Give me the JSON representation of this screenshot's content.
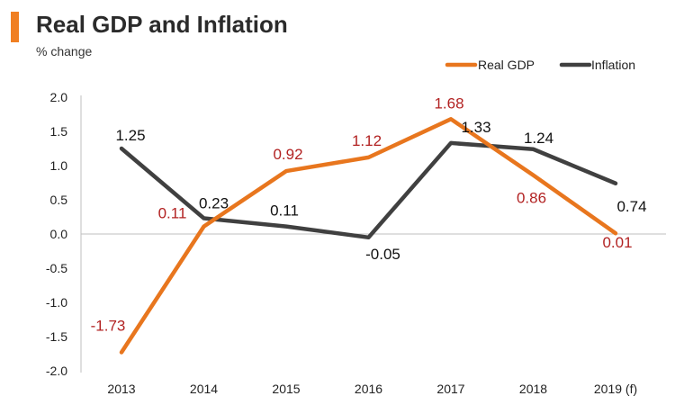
{
  "header": {
    "title": "Real GDP and Inflation",
    "subtitle": "% change"
  },
  "colors": {
    "accent": "#f07f22",
    "gdp": "#e8761e",
    "inflation": "#404040",
    "gdp_label": "#b22222",
    "inflation_label": "#111111",
    "axis": "#bfbfbf"
  },
  "chart_data": {
    "type": "line",
    "title": "Real GDP and Inflation",
    "ylabel": "% change",
    "xlabel": "",
    "categories": [
      "2013",
      "2014",
      "2015",
      "2016",
      "2017",
      "2018",
      "2019 (f)"
    ],
    "ylim": [
      -2.0,
      2.0
    ],
    "yticks": [
      "2.0",
      "1.5",
      "1.0",
      "0.5",
      "0.0",
      "-0.5",
      "-1.0",
      "-1.5",
      "-2.0"
    ],
    "ytick_values": [
      2.0,
      1.5,
      1.0,
      0.5,
      0.0,
      -0.5,
      -1.0,
      -1.5,
      -2.0
    ],
    "legend_position": "top-right",
    "grid": false,
    "series": [
      {
        "name": "Real GDP",
        "values": [
          -1.73,
          0.11,
          0.92,
          1.12,
          1.68,
          0.86,
          0.01
        ],
        "labels": [
          "-1.73",
          "0.11",
          "0.92",
          "1.12",
          "1.68",
          "0.86",
          "0.01"
        ]
      },
      {
        "name": "Inflation",
        "values": [
          1.25,
          0.23,
          0.11,
          -0.05,
          1.33,
          1.24,
          0.74
        ],
        "labels": [
          "1.25",
          "0.23",
          "0.11",
          "-0.05",
          "1.33",
          "1.24",
          "0.74"
        ]
      }
    ]
  }
}
